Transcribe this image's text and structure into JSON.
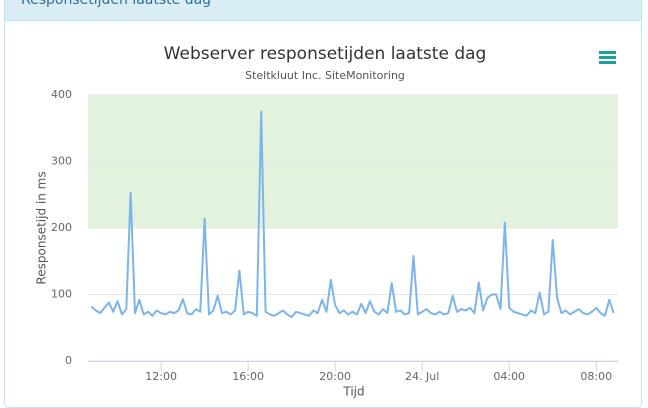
{
  "panel": {
    "title": "Responsetijden laatste dag"
  },
  "chart_data": {
    "type": "line",
    "title": "Webserver responsetijden laatste dag",
    "subtitle": "Steltkluut Inc. SiteMonitoring",
    "x_label": "Tijd",
    "y_label": "Responsetijd in ms",
    "x": [
      8.8,
      9,
      9.2,
      9.4,
      9.6,
      9.8,
      10,
      10.2,
      10.4,
      10.6,
      10.8,
      11,
      11.2,
      11.4,
      11.6,
      11.8,
      12,
      12.2,
      12.4,
      12.6,
      12.8,
      13,
      13.2,
      13.4,
      13.6,
      13.8,
      14,
      14.2,
      14.4,
      14.6,
      14.8,
      15,
      15.2,
      15.4,
      15.6,
      15.8,
      16,
      16.2,
      16.4,
      16.6,
      16.8,
      17,
      17.2,
      17.4,
      17.6,
      17.8,
      18,
      18.2,
      18.4,
      18.6,
      18.8,
      19,
      19.2,
      19.4,
      19.6,
      19.8,
      20,
      20.2,
      20.4,
      20.6,
      20.8,
      21,
      21.2,
      21.4,
      21.6,
      21.8,
      22,
      22.2,
      22.4,
      22.6,
      22.8,
      23,
      23.2,
      23.4,
      23.6,
      23.8,
      24,
      24.2,
      24.4,
      24.6,
      24.8,
      25,
      25.2,
      25.4,
      25.6,
      25.8,
      26,
      26.2,
      26.4,
      26.6,
      26.8,
      27,
      27.2,
      27.4,
      27.6,
      27.8,
      28,
      28.2,
      28.4,
      28.6,
      28.8,
      29,
      29.2,
      29.4,
      29.6,
      29.8,
      30,
      30.2,
      30.4,
      30.6,
      30.8,
      31,
      31.2,
      31.4,
      31.6,
      31.8,
      32,
      32.2,
      32.4,
      32.6,
      32.8
    ],
    "series": [
      {
        "color": "#7cb5ec",
        "values": [
          82,
          76,
          72,
          80,
          88,
          74,
          90,
          70,
          78,
          253,
          72,
          92,
          70,
          74,
          68,
          76,
          72,
          70,
          74,
          72,
          76,
          93,
          72,
          70,
          78,
          74,
          214,
          70,
          76,
          98,
          72,
          74,
          70,
          76,
          136,
          70,
          74,
          72,
          68,
          375,
          74,
          70,
          68,
          72,
          76,
          70,
          66,
          74,
          72,
          70,
          68,
          76,
          72,
          92,
          74,
          122,
          84,
          72,
          76,
          70,
          74,
          70,
          86,
          72,
          90,
          74,
          70,
          78,
          72,
          117,
          74,
          76,
          70,
          72,
          158,
          70,
          74,
          78,
          72,
          70,
          74,
          70,
          72,
          98,
          74,
          78,
          76,
          80,
          72,
          118,
          76,
          95,
          100,
          100,
          78,
          208,
          80,
          74,
          72,
          70,
          68,
          76,
          72,
          103,
          70,
          74,
          182,
          95,
          72,
          76,
          70,
          74,
          78,
          72,
          70,
          74,
          80,
          72,
          68,
          92,
          72
        ]
      }
    ],
    "xlim": [
      8.64,
      33.0
    ],
    "xticks": [
      {
        "value": 12,
        "label": "12:00"
      },
      {
        "value": 16,
        "label": "16:00"
      },
      {
        "value": 20,
        "label": "20:00"
      },
      {
        "value": 24,
        "label": "24. Jul"
      },
      {
        "value": 28,
        "label": "04:00"
      },
      {
        "value": 32,
        "label": "08:00"
      }
    ],
    "ylim": [
      0,
      400
    ],
    "yticks": [
      0,
      100,
      200,
      300,
      400
    ],
    "grid": true,
    "plot_band": {
      "from": 200,
      "to": 400,
      "color": "#e3f2dc"
    }
  }
}
